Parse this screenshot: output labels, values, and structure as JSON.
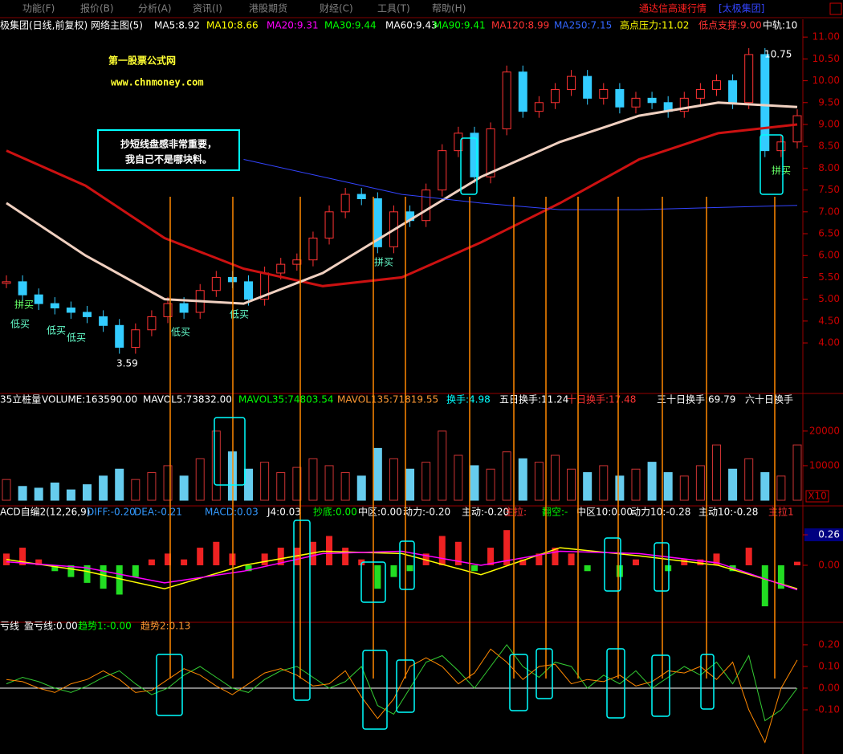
{
  "menu": {
    "items": [
      "功能(F)",
      "报价(B)",
      "分析(A)",
      "资讯(I)",
      "港股期货",
      "财经(C)",
      "工具(T)",
      "帮助(H)"
    ],
    "brand": "通达信高速行情",
    "stock": "[太极集团]"
  },
  "chart_data": [
    {
      "type": "candlestick",
      "header": [
        {
          "text": "极集团(日线,前复权) 网络主图(5)",
          "color": "#ffffff"
        },
        {
          "text": "MA5:8.92",
          "color": "#ffffff"
        },
        {
          "text": "MA10:8.66",
          "color": "#ffff00"
        },
        {
          "text": "MA20:9.31",
          "color": "#ff00ff"
        },
        {
          "text": "MA30:9.44",
          "color": "#00ff00"
        },
        {
          "text": "MA60:9.43",
          "color": "#ffffff"
        },
        {
          "text": "MA90:9.41",
          "color": "#00ff00"
        },
        {
          "text": "MA120:8.99",
          "color": "#ff3333"
        },
        {
          "text": "MA250:7.15",
          "color": "#3366ff"
        },
        {
          "text": "高点压力:11.02",
          "color": "#ffff00"
        },
        {
          "text": "低点支撑:9.00",
          "color": "#ff3333"
        },
        {
          "text": "中轨:10",
          "color": "#ffffff"
        }
      ],
      "watermark": [
        "第一股票公式网",
        "www.chnmoney.com"
      ],
      "note": [
        "抄短线盘感非常重要，",
        "我自己不是哪块料。"
      ],
      "low_label": "3.59",
      "high_label": "10.75",
      "signals": [
        "拼买",
        "低买",
        "低买",
        "低买",
        "低买",
        "低买",
        "拼买",
        "拼买"
      ],
      "ylim": [
        2.88,
        11.15
      ],
      "yticks": [
        {
          "value": 4,
          "label": "4.00"
        },
        {
          "value": 4.5,
          "label": "4.50"
        },
        {
          "value": 5,
          "label": "5.00"
        },
        {
          "value": 5.5,
          "label": "5.50"
        },
        {
          "value": 6,
          "label": "6.00"
        },
        {
          "value": 6.5,
          "label": "6.50"
        },
        {
          "value": 7,
          "label": "7.00"
        },
        {
          "value": 7.5,
          "label": "7.50"
        },
        {
          "value": 8,
          "label": "8.00"
        },
        {
          "value": 8.5,
          "label": "8.50"
        },
        {
          "value": 9,
          "label": "9.00"
        },
        {
          "value": 9.5,
          "label": "9.50"
        },
        {
          "value": 10,
          "label": "10.00"
        },
        {
          "value": 10.5,
          "label": "10.50"
        },
        {
          "value": 11,
          "label": "11.00"
        }
      ],
      "values": [
        5.4,
        5.1,
        4.9,
        4.8,
        4.7,
        4.6,
        4.4,
        3.9,
        4.3,
        4.6,
        4.9,
        4.7,
        5.2,
        5.5,
        5.4,
        5.0,
        5.6,
        5.8,
        5.9,
        6.4,
        7.0,
        7.4,
        7.3,
        6.2,
        7.0,
        6.8,
        7.5,
        8.4,
        8.8,
        7.8,
        8.9,
        10.2,
        9.3,
        9.5,
        9.8,
        10.1,
        9.6,
        9.8,
        9.4,
        9.6,
        9.5,
        9.3,
        9.6,
        9.8,
        10.0,
        9.5,
        10.6,
        8.4,
        8.6,
        9.2
      ],
      "series": [
        {
          "color": "#cc1111",
          "width": 3,
          "values": [
            8.4,
            7.6,
            6.4,
            5.7,
            5.3,
            5.5,
            6.3,
            7.2,
            8.2,
            8.8,
            9.0
          ]
        },
        {
          "color": "#f0d0c0",
          "width": 3,
          "values": [
            7.2,
            6.0,
            5.0,
            4.9,
            5.6,
            6.7,
            7.8,
            8.6,
            9.2,
            9.5,
            9.4
          ]
        },
        {
          "color": "#3344ff",
          "width": 1,
          "values": [
            null,
            null,
            null,
            8.2,
            7.8,
            7.4,
            7.2,
            7.05,
            7.05,
            7.1,
            7.15
          ]
        }
      ]
    },
    {
      "type": "bar",
      "header": [
        {
          "text": "35立桩量",
          "color": "#ffffff"
        },
        {
          "text": "VOLUME:163590.00",
          "color": "#ffffff"
        },
        {
          "text": "MAVOL5:73832.00",
          "color": "#ffffff"
        },
        {
          "text": "MAVOL35:74803.54",
          "color": "#00ff00"
        },
        {
          "text": "MAVOL135:71819.55",
          "color": "#ff9933"
        },
        {
          "text": "换手:4.98",
          "color": "#00ffff"
        },
        {
          "text": "五日换手:11.24",
          "color": "#ffffff"
        },
        {
          "text": "十日换手:17.48",
          "color": "#ff3333"
        },
        {
          "text": "三十日换手:69.79",
          "color": "#ffffff"
        },
        {
          "text": "六十日换手",
          "color": "#ffffff"
        }
      ],
      "scale_label": "X10",
      "ylim": [
        0,
        26700
      ],
      "yticks": [
        10000,
        20000
      ],
      "values": [
        6000,
        4000,
        3500,
        5000,
        3000,
        4500,
        7000,
        9000,
        6000,
        8000,
        10000,
        7000,
        12000,
        20000,
        14000,
        9000,
        11000,
        8000,
        9500,
        12000,
        10000,
        8000,
        7000,
        15000,
        12000,
        9000,
        11000,
        20000,
        13000,
        10000,
        9000,
        14000,
        12000,
        11000,
        13000,
        9000,
        8000,
        10000,
        7000,
        9000,
        11000,
        8000,
        7000,
        10000,
        16000,
        9000,
        12000,
        8000,
        7000,
        16000
      ]
    },
    {
      "type": "histogram",
      "header": [
        {
          "text": "ACD自编2(12,26,9)",
          "color": "#ffffff"
        },
        {
          "text": "DIFF:-0.20",
          "color": "#3399ff"
        },
        {
          "text": "DEA:-0.21",
          "color": "#3399ff"
        },
        {
          "text": "MACD:0.03",
          "color": "#3399ff"
        },
        {
          "text": "J4:0.03",
          "color": "#ffffff"
        },
        {
          "text": "抄底:0.00",
          "color": "#00ff00"
        },
        {
          "text": "中区:0.00",
          "color": "#ffffff"
        },
        {
          "text": "动力:-0.20",
          "color": "#ffffff"
        },
        {
          "text": "主动:-0.20",
          "color": "#ffffff"
        },
        {
          "text": "主拉:",
          "color": "#ff3333"
        },
        {
          "text": "翻空:-",
          "color": "#00ff00"
        },
        {
          "text": "中区10:0.00",
          "color": "#ffffff"
        },
        {
          "text": "动力10:-0.28",
          "color": "#ffffff"
        },
        {
          "text": "主动10:-0.28",
          "color": "#ffffff"
        },
        {
          "text": "主拉1",
          "color": "#ff3333"
        }
      ],
      "ylim": [
        -0.466,
        0.404
      ],
      "yticks": [
        {
          "value": 0,
          "label": "0.00"
        },
        {
          "value": 0.26,
          "label": "0.26"
        }
      ],
      "values": [
        0.1,
        0.15,
        0.05,
        -0.05,
        -0.1,
        -0.15,
        -0.2,
        -0.25,
        -0.1,
        0.05,
        0.1,
        0.05,
        0.15,
        0.2,
        0.1,
        -0.05,
        0.1,
        0.15,
        0.15,
        0.2,
        0.25,
        0.15,
        0.05,
        -0.2,
        -0.1,
        -0.05,
        0.1,
        0.25,
        0.2,
        -0.05,
        0.15,
        0.3,
        0.05,
        0.1,
        0.15,
        0.1,
        -0.05,
        0.0,
        -0.1,
        0.05,
        0.0,
        -0.05,
        0.05,
        0.05,
        0.1,
        -0.05,
        0.15,
        -0.35,
        -0.2,
        0.03
      ],
      "series": [
        {
          "color": "#ffff00",
          "width": 1.5,
          "values": [
            0.05,
            -0.05,
            -0.2,
            0.0,
            0.12,
            0.1,
            -0.08,
            0.15,
            0.08,
            0.0,
            -0.2
          ]
        },
        {
          "color": "#ff00ff",
          "width": 1.5,
          "values": [
            0.03,
            -0.02,
            -0.15,
            -0.05,
            0.1,
            0.12,
            0.0,
            0.12,
            0.1,
            0.02,
            -0.21
          ]
        }
      ]
    },
    {
      "type": "line",
      "header": [
        {
          "text": "亏线",
          "color": "#ffffff"
        },
        {
          "text": "盈亏线:0.00",
          "color": "#ffffff"
        },
        {
          "text": "趋势1:-0.00",
          "color": "#00ff00"
        },
        {
          "text": "趋势2:0.13",
          "color": "#ff9933"
        }
      ],
      "ylim": [
        -0.289,
        0.248
      ],
      "yticks": [
        {
          "value": -0.1,
          "label": "-0.10"
        },
        {
          "value": 0,
          "label": "0.00"
        },
        {
          "value": 0.1,
          "label": "0.10"
        },
        {
          "value": 0.2,
          "label": "0.20"
        }
      ],
      "series": [
        {
          "color": "#33cc33",
          "width": 1,
          "values": [
            0.02,
            0.05,
            0.03,
            0.0,
            -0.02,
            0.01,
            0.05,
            0.08,
            0.02,
            -0.03,
            0.0,
            0.06,
            0.1,
            0.05,
            0.0,
            -0.02,
            0.04,
            0.08,
            0.1,
            0.05,
            0.0,
            0.03,
            0.1,
            -0.08,
            -0.12,
            0.0,
            0.12,
            0.15,
            0.08,
            0.0,
            0.1,
            0.2,
            0.1,
            0.05,
            0.12,
            0.1,
            0.0,
            0.06,
            0.02,
            0.08,
            0.0,
            0.05,
            0.1,
            0.06,
            0.12,
            0.02,
            0.15,
            -0.15,
            -0.1,
            0.0
          ]
        },
        {
          "color": "#ff8800",
          "width": 1,
          "values": [
            0.04,
            0.03,
            0.0,
            -0.02,
            0.02,
            0.04,
            0.08,
            0.04,
            -0.02,
            -0.01,
            0.04,
            0.09,
            0.06,
            0.01,
            -0.03,
            0.02,
            0.07,
            0.09,
            0.06,
            0.01,
            0.02,
            0.08,
            -0.04,
            -0.14,
            -0.05,
            0.1,
            0.14,
            0.1,
            0.02,
            0.07,
            0.18,
            0.12,
            0.04,
            0.1,
            0.11,
            0.02,
            0.04,
            0.03,
            0.06,
            0.01,
            0.03,
            0.08,
            0.07,
            0.1,
            0.04,
            0.12,
            -0.1,
            -0.25,
            0.0,
            0.13
          ]
        }
      ]
    }
  ]
}
